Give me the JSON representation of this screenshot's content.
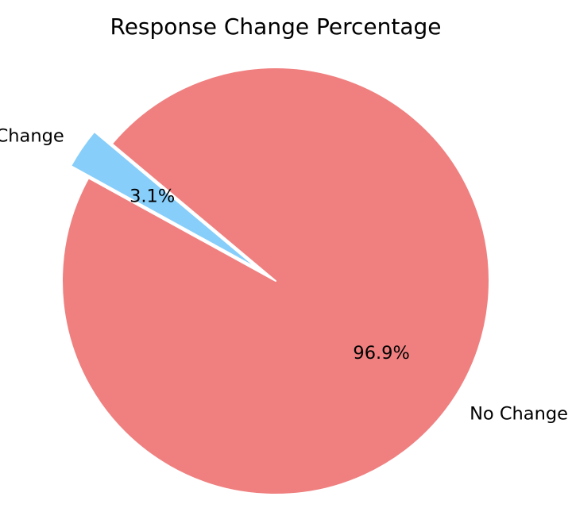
{
  "chart_data": {
    "type": "pie",
    "title": "Response Change Percentage",
    "slices": [
      {
        "label": "Change",
        "value": 3.1,
        "pct_label": "3.1%",
        "color": "#87CEFA",
        "exploded": true
      },
      {
        "label": "No Change",
        "value": 96.9,
        "pct_label": "96.9%",
        "color": "#F08080",
        "exploded": false
      }
    ],
    "start_angle_deg": 140,
    "direction": "counterclockwise",
    "wedge_edge_color": "#FFFFFF"
  }
}
